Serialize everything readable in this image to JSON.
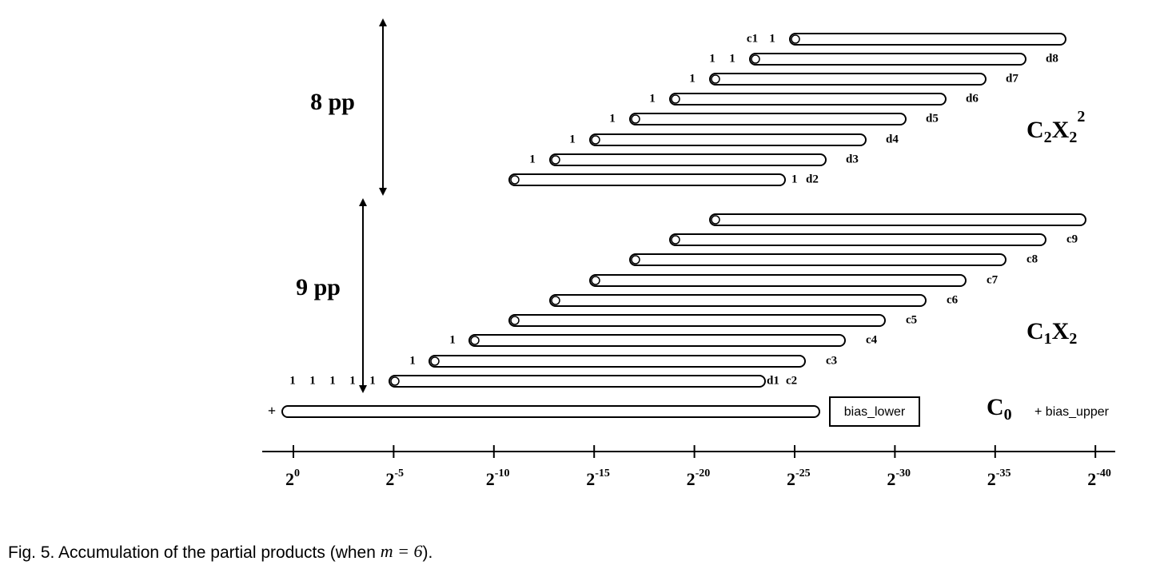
{
  "group_labels": {
    "upper": "8 pp",
    "lower": "9 pp"
  },
  "upper_rows": [
    {
      "left": [
        "c1",
        "1"
      ]
    },
    {
      "left": [
        "1",
        "1"
      ],
      "right": [
        "d8"
      ]
    },
    {
      "left": [
        "1"
      ],
      "right": [
        "d7"
      ]
    },
    {
      "left": [
        "1"
      ],
      "right": [
        "d6"
      ]
    },
    {
      "left": [
        "1"
      ],
      "right": [
        "d5"
      ]
    },
    {
      "left": [
        "1"
      ],
      "right": [
        "d4"
      ]
    },
    {
      "left": [
        "1"
      ],
      "right": [
        "d3"
      ]
    },
    {
      "right": [
        "1",
        "d2"
      ]
    }
  ],
  "lower_rows": [
    {},
    {
      "right": [
        "c9"
      ]
    },
    {
      "right": [
        "c8"
      ]
    },
    {
      "right": [
        "c7"
      ]
    },
    {
      "right": [
        "c6"
      ]
    },
    {
      "right": [
        "c5"
      ]
    },
    {
      "left": [
        "1"
      ],
      "right": [
        "c4"
      ]
    },
    {
      "left": [
        "1"
      ],
      "right": [
        "c3"
      ]
    },
    {
      "left": [
        "1",
        "1",
        "1",
        "1",
        "1"
      ],
      "right": [
        "d1",
        "c2"
      ]
    }
  ],
  "bias_row": {
    "prefix": "+",
    "box": "bias_lower",
    "term": "C",
    "term_sub": "0",
    "suffix": "+ bias_upper"
  },
  "terms": {
    "upper": {
      "parts": [
        {
          "base": "C",
          "sub": "2"
        },
        {
          "base": "X",
          "sub": "2"
        }
      ],
      "sup": "2"
    },
    "lower": {
      "parts": [
        {
          "base": "C",
          "sub": "1"
        },
        {
          "base": "X",
          "sub": "2"
        }
      ]
    }
  },
  "axis_ticks": [
    {
      "base": "2",
      "exp": "0"
    },
    {
      "base": "2",
      "exp": "-5"
    },
    {
      "base": "2",
      "exp": "-10"
    },
    {
      "base": "2",
      "exp": "-15"
    },
    {
      "base": "2",
      "exp": "-20"
    },
    {
      "base": "2",
      "exp": "-25"
    },
    {
      "base": "2",
      "exp": "-30"
    },
    {
      "base": "2",
      "exp": "-35"
    },
    {
      "base": "2",
      "exp": "-40"
    }
  ],
  "caption": {
    "text": "Fig. 5. Accumulation of the partial products (when ",
    "math": "m = 6",
    "end": ")."
  }
}
